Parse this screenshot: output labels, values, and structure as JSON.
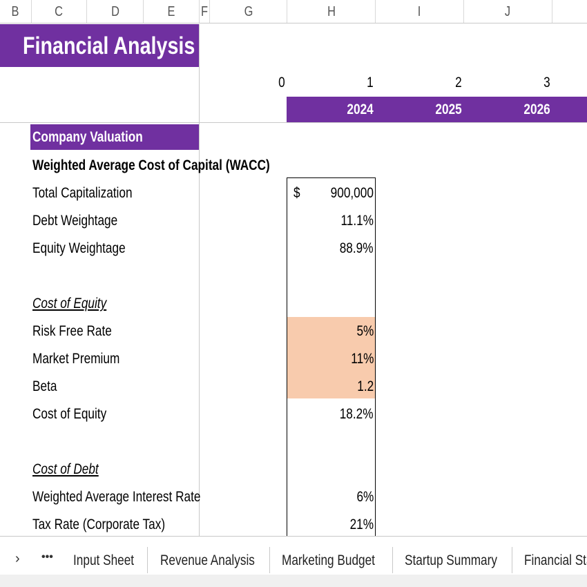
{
  "column_headers": [
    "B",
    "C",
    "D",
    "E",
    "F",
    "G",
    "H",
    "I",
    "J"
  ],
  "header": {
    "title": "Financial Analysis"
  },
  "periods": {
    "indices": [
      "0",
      "1",
      "2",
      "3"
    ],
    "years": [
      "2024",
      "2025",
      "2026"
    ]
  },
  "section": {
    "title": "Company Valuation"
  },
  "table": {
    "currency": "$",
    "rows": [
      {
        "label": "Weighted Average Cost of Capital (WACC)"
      },
      {
        "label": "Total Capitalization",
        "value": "900,000"
      },
      {
        "label": "Debt Weightage",
        "value": "11.1%"
      },
      {
        "label": "Equity Weightage",
        "value": "88.9%"
      },
      {
        "label": "Cost of Equity"
      },
      {
        "label": "Risk Free Rate",
        "value": "5%"
      },
      {
        "label": "Market Premium",
        "value": "11%"
      },
      {
        "label": "Beta",
        "value": "1.2"
      },
      {
        "label": "Cost of Equity",
        "value": "18.2%"
      },
      {
        "label": "Cost of Debt"
      },
      {
        "label": "Weighted Average Interest Rate",
        "value": "6%"
      },
      {
        "label": "Tax Rate (Corporate Tax)",
        "value": "21%"
      }
    ]
  },
  "tabs": [
    "Input Sheet",
    "Revenue Analysis",
    "Marketing Budget",
    "Startup Summary",
    "Financial Sta"
  ]
}
